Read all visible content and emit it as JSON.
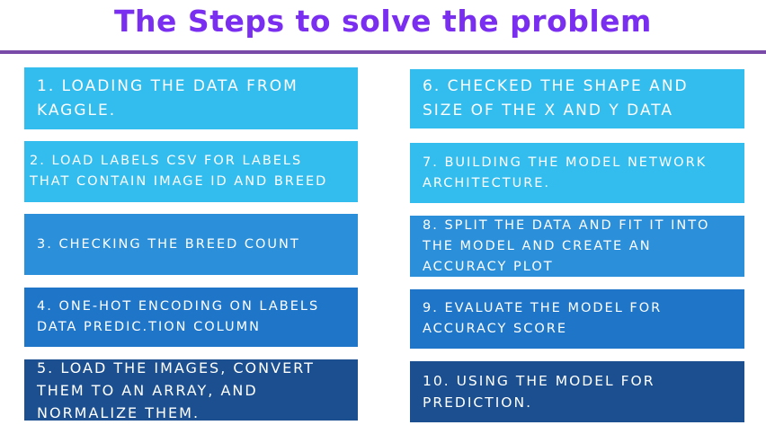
{
  "title": "The Steps to solve the problem",
  "colors": {
    "title": "#7a2ff0",
    "divider": "#7a4aa8",
    "box_light": "#33bdee",
    "box_mid": "#2b8fd9",
    "box_deep": "#1f76c9",
    "box_dark": "#1b4f8f"
  },
  "steps": [
    {
      "text": "1. Loading the data from Kaggle."
    },
    {
      "text": "2. Load labels CSV for labels that contain image ID and breed"
    },
    {
      "text": "3. Checking the breed count"
    },
    {
      "text": "4. One-hot encoding on labels data predic.tion column"
    },
    {
      "text": "5. Load the images, convert them to an array, and normalize them."
    },
    {
      "text": "6. Checked the shape and size of the X and Y data"
    },
    {
      "text": "7. Building the model network architecture."
    },
    {
      "text": "8. Split the data and fit it into the model and create an accuracy plot"
    },
    {
      "text": "9. Evaluate the model for accuracy score"
    },
    {
      "text": "10. Using the model for prediction."
    }
  ]
}
